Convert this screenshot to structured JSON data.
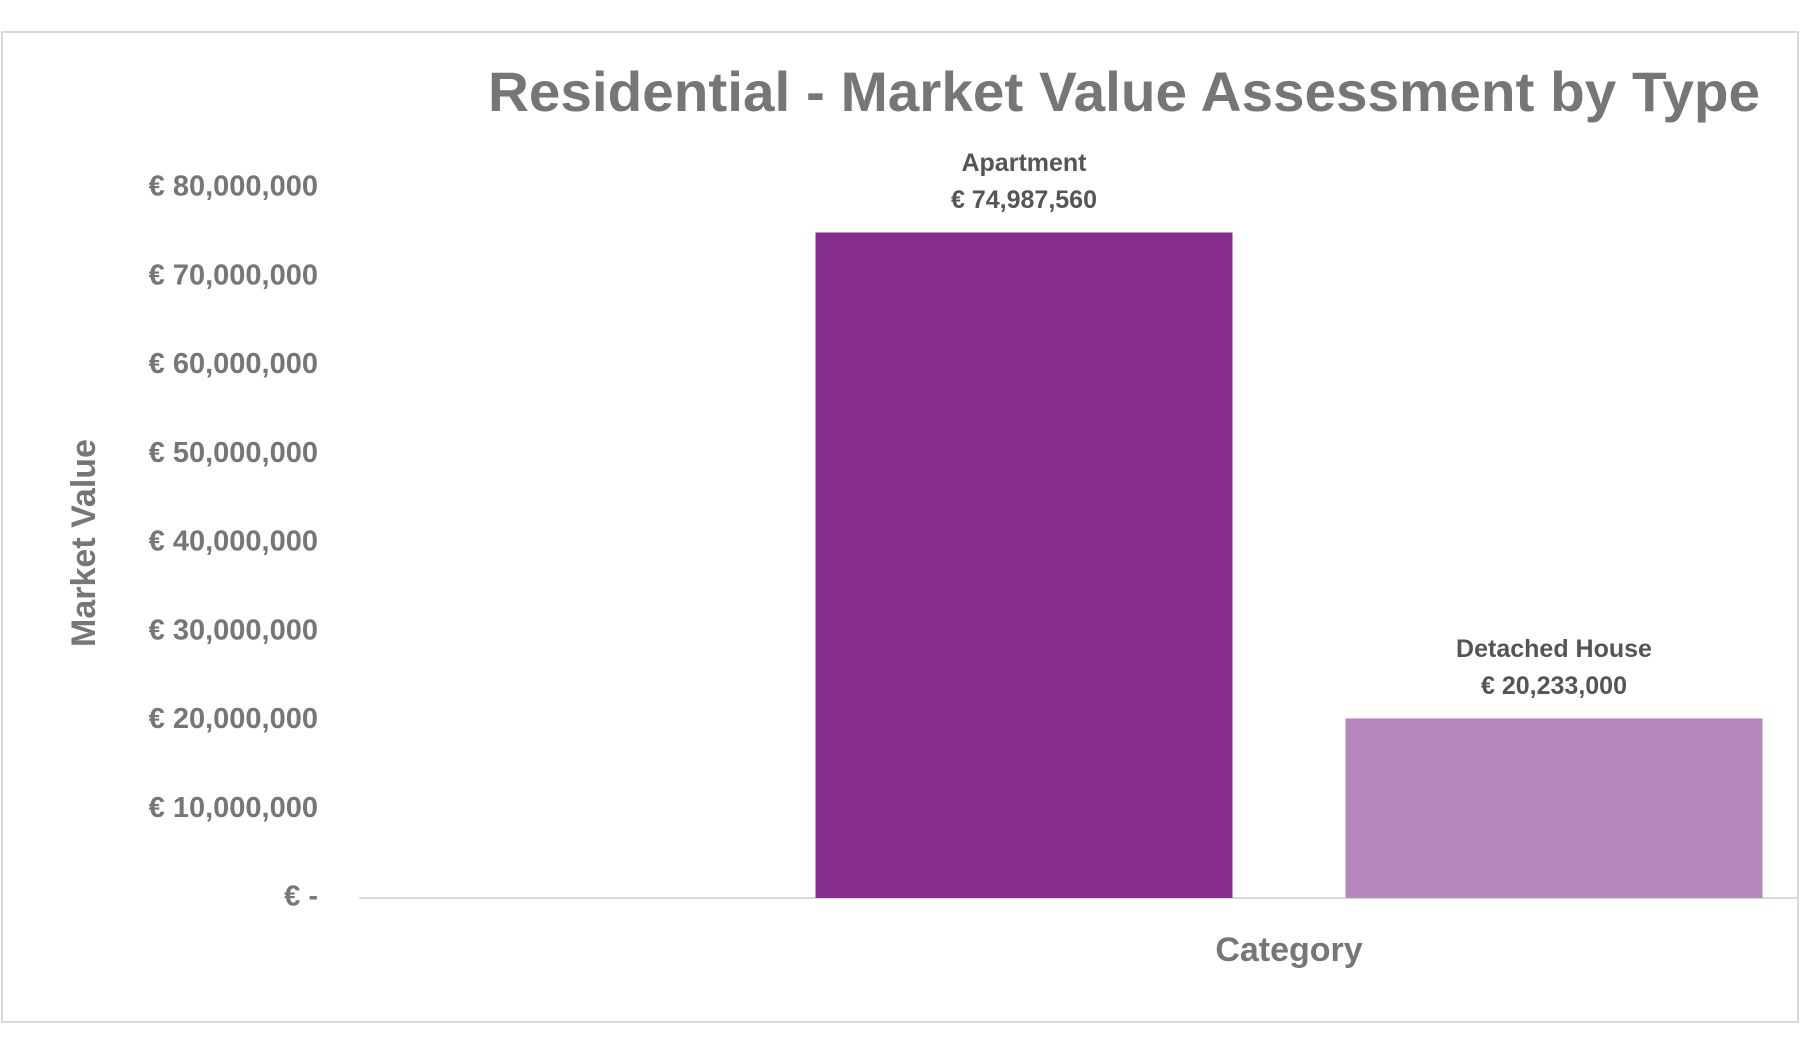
{
  "chart_data": {
    "type": "bar",
    "title": "Residential - Market Value Assessment by Type",
    "x_label": "Category",
    "y_label": "Market Value",
    "categories": [
      "Apartment",
      "Detached House"
    ],
    "values": [
      74987560,
      20233000
    ],
    "value_labels": [
      "€ 74,987,560",
      "€ 20,233,000"
    ],
    "colors": [
      "#852c8e",
      "#b687bd"
    ],
    "ylim": [
      0,
      80000000
    ],
    "yticks": [
      {
        "value": 0,
        "label": "€ -"
      },
      {
        "value": 10000000,
        "label": "€ 10,000,000"
      },
      {
        "value": 20000000,
        "label": "€ 20,000,000"
      },
      {
        "value": 30000000,
        "label": "€ 30,000,000"
      },
      {
        "value": 40000000,
        "label": "€ 40,000,000"
      },
      {
        "value": 50000000,
        "label": "€ 50,000,000"
      },
      {
        "value": 60000000,
        "label": "€ 60,000,000"
      },
      {
        "value": 70000000,
        "label": "€ 70,000,000"
      },
      {
        "value": 80000000,
        "label": "€ 80,000,000"
      }
    ],
    "grid": false
  }
}
